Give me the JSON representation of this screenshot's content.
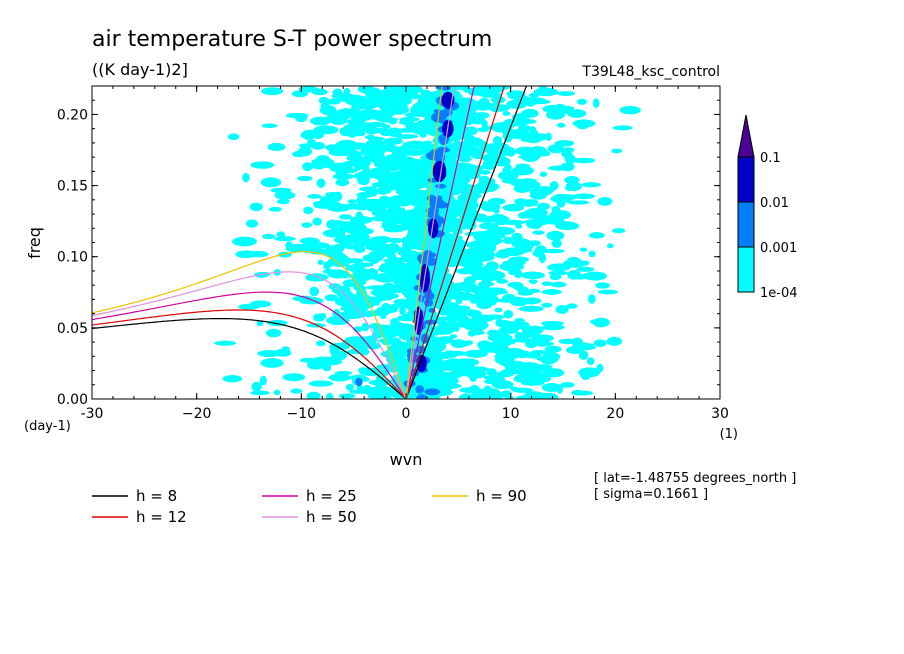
{
  "chart_data": {
    "type": "heatmap",
    "title": "air temperature S-T power spectrum",
    "units": "((K day-1)2]",
    "dataset": "T39L48_ksc_control",
    "xlabel": "wvn",
    "ylabel": "freq",
    "x_unit": "(1)",
    "y_unit": "(day-1)",
    "xlim": [
      -30,
      30
    ],
    "ylim": [
      0,
      0.22
    ],
    "x_ticks": [
      {
        "v": -30,
        "label": "-30"
      },
      {
        "v": -20,
        "label": "−20"
      },
      {
        "v": -10,
        "label": "−10"
      },
      {
        "v": 0,
        "label": "0"
      },
      {
        "v": 10,
        "label": "10"
      },
      {
        "v": 20,
        "label": "20"
      },
      {
        "v": 30,
        "label": "30"
      }
    ],
    "y_ticks": [
      {
        "v": 0,
        "label": "0.00"
      },
      {
        "v": 0.05,
        "label": "0.05"
      },
      {
        "v": 0.1,
        "label": "0.10"
      },
      {
        "v": 0.15,
        "label": "0.15"
      },
      {
        "v": 0.2,
        "label": "0.20"
      }
    ],
    "colorbar": {
      "levels": [
        "1e-04",
        "0.001",
        "0.01",
        "0.1"
      ],
      "colors": [
        "#00ffff",
        "#0080ff",
        "#0000c8",
        "#4b0096"
      ]
    },
    "blobs": [
      {
        "x": 4.0,
        "y": 0.21,
        "w": 1.2,
        "h": 0.012,
        "level": 2
      },
      {
        "x": 4.0,
        "y": 0.19,
        "w": 1.1,
        "h": 0.012,
        "level": 2
      },
      {
        "x": 3.2,
        "y": 0.16,
        "w": 1.3,
        "h": 0.015,
        "level": 2
      },
      {
        "x": 2.6,
        "y": 0.12,
        "w": 1.0,
        "h": 0.014,
        "level": 2
      },
      {
        "x": 1.8,
        "y": 0.085,
        "w": 1.0,
        "h": 0.02,
        "level": 2
      },
      {
        "x": 1.2,
        "y": 0.055,
        "w": 0.9,
        "h": 0.02,
        "level": 2
      },
      {
        "x": 1.5,
        "y": 0.025,
        "w": 1.0,
        "h": 0.012,
        "level": 2
      },
      {
        "x": -4.5,
        "y": 0.012,
        "w": 0.7,
        "h": 0.006,
        "level": 1
      },
      {
        "x": 2.5,
        "y": 0.005,
        "w": 1.5,
        "h": 0.005,
        "level": 1
      },
      {
        "x": 0.5,
        "y": 0.03,
        "w": 0.8,
        "h": 0.01,
        "level": 1
      }
    ],
    "series": [
      {
        "name": "h = 8",
        "h": 8,
        "color": "#000000"
      },
      {
        "name": "h = 12",
        "h": 12,
        "color": "#e00000"
      },
      {
        "name": "h = 25",
        "h": 25,
        "color": "#d000a0"
      },
      {
        "name": "h = 50",
        "h": 50,
        "color": "#e090e0"
      },
      {
        "name": "h = 90",
        "h": 90,
        "color": "#f0c000"
      }
    ],
    "annotations": [
      "[ lat=-1.48755 degrees_north ]",
      "[ sigma=0.1661 ]"
    ]
  }
}
